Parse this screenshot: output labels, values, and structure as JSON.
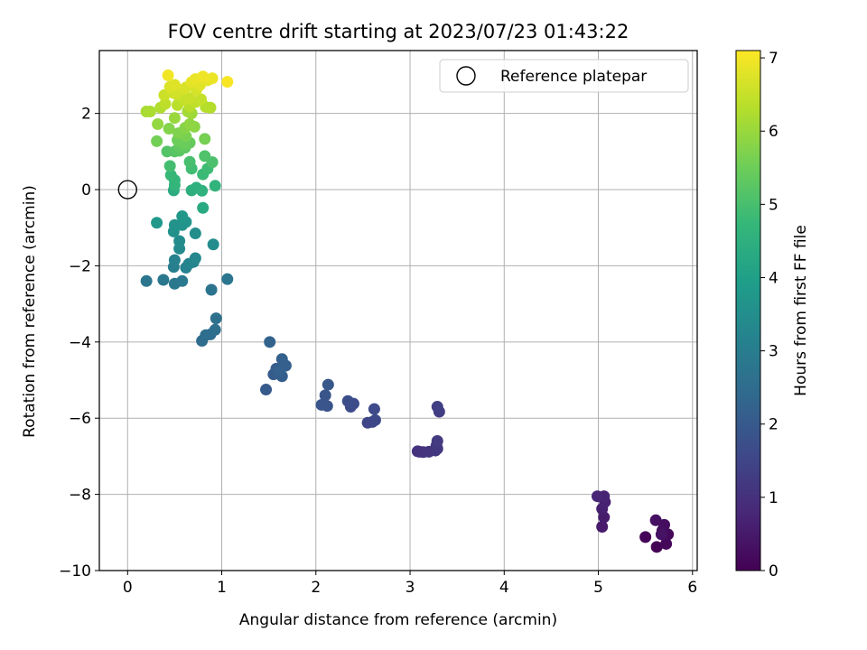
{
  "chart_data": {
    "type": "scatter",
    "title": "FOV centre drift starting at 2023/07/23 01:43:22",
    "xlabel": "Angular distance from reference (arcmin)",
    "ylabel": "Rotation from reference (arcmin)",
    "xlim": [
      -0.3,
      6.05
    ],
    "ylim": [
      -10,
      3.65
    ],
    "xticks": [
      0,
      1,
      2,
      3,
      4,
      5,
      6
    ],
    "yticks": [
      -10,
      -8,
      -6,
      -4,
      -2,
      0,
      2
    ],
    "grid": true,
    "legend": {
      "position": "top-right",
      "entries": [
        "Reference platepar"
      ]
    },
    "reference_point": {
      "x": 0,
      "y": 0,
      "label": "Reference platepar"
    },
    "colorbar": {
      "label": "Hours from first FF file",
      "colormap": "viridis",
      "range": [
        0,
        7.1
      ],
      "ticks": [
        0,
        1,
        2,
        3,
        4,
        5,
        6,
        7
      ]
    },
    "points": [
      {
        "x": 5.62,
        "y": -9.38,
        "t": 0.03
      },
      {
        "x": 5.5,
        "y": -9.12,
        "t": 0.08
      },
      {
        "x": 5.72,
        "y": -9.3,
        "t": 0.12
      },
      {
        "x": 5.74,
        "y": -9.05,
        "t": 0.16
      },
      {
        "x": 5.68,
        "y": -8.95,
        "t": 0.2
      },
      {
        "x": 5.7,
        "y": -8.8,
        "t": 0.25
      },
      {
        "x": 5.61,
        "y": -8.68,
        "t": 0.3
      },
      {
        "x": 5.67,
        "y": -9.05,
        "t": 0.35
      },
      {
        "x": 5.04,
        "y": -8.85,
        "t": 0.5
      },
      {
        "x": 5.06,
        "y": -8.6,
        "t": 0.55
      },
      {
        "x": 5.04,
        "y": -8.38,
        "t": 0.6
      },
      {
        "x": 5.07,
        "y": -8.2,
        "t": 0.65
      },
      {
        "x": 5.06,
        "y": -8.05,
        "t": 0.7
      },
      {
        "x": 4.99,
        "y": -8.05,
        "t": 0.75
      },
      {
        "x": 3.1,
        "y": -6.88,
        "t": 1.0
      },
      {
        "x": 3.08,
        "y": -6.87,
        "t": 1.03
      },
      {
        "x": 3.14,
        "y": -6.89,
        "t": 1.06
      },
      {
        "x": 3.2,
        "y": -6.88,
        "t": 1.09
      },
      {
        "x": 3.27,
        "y": -6.85,
        "t": 1.12
      },
      {
        "x": 3.29,
        "y": -6.8,
        "t": 1.15
      },
      {
        "x": 3.28,
        "y": -6.72,
        "t": 1.18
      },
      {
        "x": 3.29,
        "y": -6.6,
        "t": 1.21
      },
      {
        "x": 3.31,
        "y": -5.83,
        "t": 1.3
      },
      {
        "x": 3.29,
        "y": -5.7,
        "t": 1.35
      },
      {
        "x": 2.55,
        "y": -6.12,
        "t": 1.5
      },
      {
        "x": 2.6,
        "y": -6.1,
        "t": 1.53
      },
      {
        "x": 2.63,
        "y": -6.05,
        "t": 1.56
      },
      {
        "x": 2.62,
        "y": -5.76,
        "t": 1.6
      },
      {
        "x": 2.37,
        "y": -5.7,
        "t": 1.65
      },
      {
        "x": 2.4,
        "y": -5.62,
        "t": 1.68
      },
      {
        "x": 2.34,
        "y": -5.55,
        "t": 1.71
      },
      {
        "x": 2.12,
        "y": -5.68,
        "t": 1.85
      },
      {
        "x": 2.06,
        "y": -5.65,
        "t": 1.88
      },
      {
        "x": 2.1,
        "y": -5.4,
        "t": 1.91
      },
      {
        "x": 2.13,
        "y": -5.12,
        "t": 1.94
      },
      {
        "x": 1.47,
        "y": -5.25,
        "t": 2.0
      },
      {
        "x": 1.55,
        "y": -4.85,
        "t": 2.05
      },
      {
        "x": 1.58,
        "y": -4.7,
        "t": 2.08
      },
      {
        "x": 1.64,
        "y": -4.9,
        "t": 2.11
      },
      {
        "x": 1.68,
        "y": -4.62,
        "t": 2.14
      },
      {
        "x": 1.64,
        "y": -4.45,
        "t": 2.17
      },
      {
        "x": 1.62,
        "y": -4.75,
        "t": 2.2
      },
      {
        "x": 1.51,
        "y": -4.0,
        "t": 2.25
      },
      {
        "x": 0.79,
        "y": -3.97,
        "t": 2.5
      },
      {
        "x": 0.83,
        "y": -3.82,
        "t": 2.53
      },
      {
        "x": 0.88,
        "y": -3.8,
        "t": 2.56
      },
      {
        "x": 0.93,
        "y": -3.68,
        "t": 2.59
      },
      {
        "x": 0.94,
        "y": -3.38,
        "t": 2.62
      },
      {
        "x": 0.89,
        "y": -2.63,
        "t": 2.7
      },
      {
        "x": 1.06,
        "y": -2.35,
        "t": 2.75
      },
      {
        "x": 0.2,
        "y": -2.4,
        "t": 2.8
      },
      {
        "x": 0.38,
        "y": -2.37,
        "t": 2.83
      },
      {
        "x": 0.5,
        "y": -2.47,
        "t": 2.86
      },
      {
        "x": 0.58,
        "y": -2.4,
        "t": 2.89
      },
      {
        "x": 0.49,
        "y": -2.03,
        "t": 3.05
      },
      {
        "x": 0.5,
        "y": -1.85,
        "t": 3.1
      },
      {
        "x": 0.62,
        "y": -2.05,
        "t": 3.15
      },
      {
        "x": 0.65,
        "y": -1.95,
        "t": 3.2
      },
      {
        "x": 0.7,
        "y": -1.9,
        "t": 3.25
      },
      {
        "x": 0.72,
        "y": -1.8,
        "t": 3.3
      },
      {
        "x": 0.55,
        "y": -1.55,
        "t": 3.35
      },
      {
        "x": 0.55,
        "y": -1.35,
        "t": 3.4
      },
      {
        "x": 0.91,
        "y": -1.44,
        "t": 3.45
      },
      {
        "x": 0.72,
        "y": -1.15,
        "t": 3.5
      },
      {
        "x": 0.49,
        "y": -1.1,
        "t": 3.55
      },
      {
        "x": 0.5,
        "y": -0.93,
        "t": 3.6
      },
      {
        "x": 0.58,
        "y": -0.93,
        "t": 3.65
      },
      {
        "x": 0.62,
        "y": -0.85,
        "t": 3.7
      },
      {
        "x": 0.58,
        "y": -0.7,
        "t": 3.75
      },
      {
        "x": 0.31,
        "y": -0.87,
        "t": 3.8
      },
      {
        "x": 0.8,
        "y": -0.48,
        "t": 4.3
      },
      {
        "x": 0.49,
        "y": -0.02,
        "t": 4.4
      },
      {
        "x": 0.68,
        "y": -0.02,
        "t": 4.45
      },
      {
        "x": 0.73,
        "y": 0.05,
        "t": 4.5
      },
      {
        "x": 0.79,
        "y": -0.03,
        "t": 4.55
      },
      {
        "x": 0.93,
        "y": 0.1,
        "t": 4.6
      },
      {
        "x": 0.5,
        "y": 0.12,
        "t": 4.65
      },
      {
        "x": 0.5,
        "y": 0.25,
        "t": 4.7
      },
      {
        "x": 0.46,
        "y": 0.38,
        "t": 4.75
      },
      {
        "x": 0.8,
        "y": 0.4,
        "t": 4.8
      },
      {
        "x": 0.85,
        "y": 0.55,
        "t": 4.85
      },
      {
        "x": 0.68,
        "y": 0.55,
        "t": 4.9
      },
      {
        "x": 0.45,
        "y": 0.62,
        "t": 4.95
      },
      {
        "x": 0.66,
        "y": 0.73,
        "t": 5.0
      },
      {
        "x": 0.9,
        "y": 0.72,
        "t": 5.05
      },
      {
        "x": 0.82,
        "y": 0.88,
        "t": 5.1
      },
      {
        "x": 0.42,
        "y": 1.0,
        "t": 5.15
      },
      {
        "x": 0.5,
        "y": 1.0,
        "t": 5.2
      },
      {
        "x": 0.55,
        "y": 1.02,
        "t": 5.25
      },
      {
        "x": 0.61,
        "y": 1.1,
        "t": 5.3
      },
      {
        "x": 0.55,
        "y": 1.15,
        "t": 5.35
      },
      {
        "x": 0.66,
        "y": 1.23,
        "t": 5.4
      },
      {
        "x": 0.6,
        "y": 1.2,
        "t": 5.45
      },
      {
        "x": 0.53,
        "y": 1.3,
        "t": 5.5
      },
      {
        "x": 0.31,
        "y": 1.27,
        "t": 5.55
      },
      {
        "x": 0.82,
        "y": 1.33,
        "t": 5.6
      },
      {
        "x": 0.62,
        "y": 1.4,
        "t": 5.65
      },
      {
        "x": 0.54,
        "y": 1.48,
        "t": 5.7
      },
      {
        "x": 0.44,
        "y": 1.6,
        "t": 5.75
      },
      {
        "x": 0.61,
        "y": 1.62,
        "t": 5.8
      },
      {
        "x": 0.71,
        "y": 1.65,
        "t": 5.85
      },
      {
        "x": 0.66,
        "y": 1.72,
        "t": 5.9
      },
      {
        "x": 0.32,
        "y": 1.72,
        "t": 5.95
      },
      {
        "x": 0.5,
        "y": 1.88,
        "t": 6.0
      },
      {
        "x": 0.68,
        "y": 2.0,
        "t": 6.05
      },
      {
        "x": 0.64,
        "y": 2.05,
        "t": 6.1
      },
      {
        "x": 0.2,
        "y": 2.05,
        "t": 6.15
      },
      {
        "x": 0.24,
        "y": 2.05,
        "t": 6.2
      },
      {
        "x": 0.35,
        "y": 2.15,
        "t": 6.25
      },
      {
        "x": 0.88,
        "y": 2.15,
        "t": 6.28
      },
      {
        "x": 0.83,
        "y": 2.17,
        "t": 6.31
      },
      {
        "x": 0.66,
        "y": 2.18,
        "t": 6.34
      },
      {
        "x": 0.53,
        "y": 2.22,
        "t": 6.37
      },
      {
        "x": 0.4,
        "y": 2.25,
        "t": 6.4
      },
      {
        "x": 0.72,
        "y": 2.3,
        "t": 6.43
      },
      {
        "x": 0.6,
        "y": 2.35,
        "t": 6.46
      },
      {
        "x": 0.78,
        "y": 2.37,
        "t": 6.49
      },
      {
        "x": 0.66,
        "y": 2.4,
        "t": 6.52
      },
      {
        "x": 0.39,
        "y": 2.48,
        "t": 6.55
      },
      {
        "x": 0.52,
        "y": 2.5,
        "t": 6.58
      },
      {
        "x": 0.47,
        "y": 2.55,
        "t": 6.61
      },
      {
        "x": 0.58,
        "y": 2.62,
        "t": 6.64
      },
      {
        "x": 0.73,
        "y": 2.62,
        "t": 6.67
      },
      {
        "x": 0.62,
        "y": 2.68,
        "t": 6.7
      },
      {
        "x": 0.45,
        "y": 2.7,
        "t": 6.73
      },
      {
        "x": 0.5,
        "y": 2.75,
        "t": 6.76
      },
      {
        "x": 0.77,
        "y": 2.75,
        "t": 6.79
      },
      {
        "x": 0.68,
        "y": 2.82,
        "t": 6.82
      },
      {
        "x": 0.85,
        "y": 2.87,
        "t": 6.85
      },
      {
        "x": 0.72,
        "y": 2.9,
        "t": 6.88
      },
      {
        "x": 0.9,
        "y": 2.92,
        "t": 6.91
      },
      {
        "x": 0.8,
        "y": 2.97,
        "t": 6.94
      },
      {
        "x": 0.43,
        "y": 3.0,
        "t": 6.97
      },
      {
        "x": 1.06,
        "y": 2.83,
        "t": 7.05
      }
    ]
  }
}
